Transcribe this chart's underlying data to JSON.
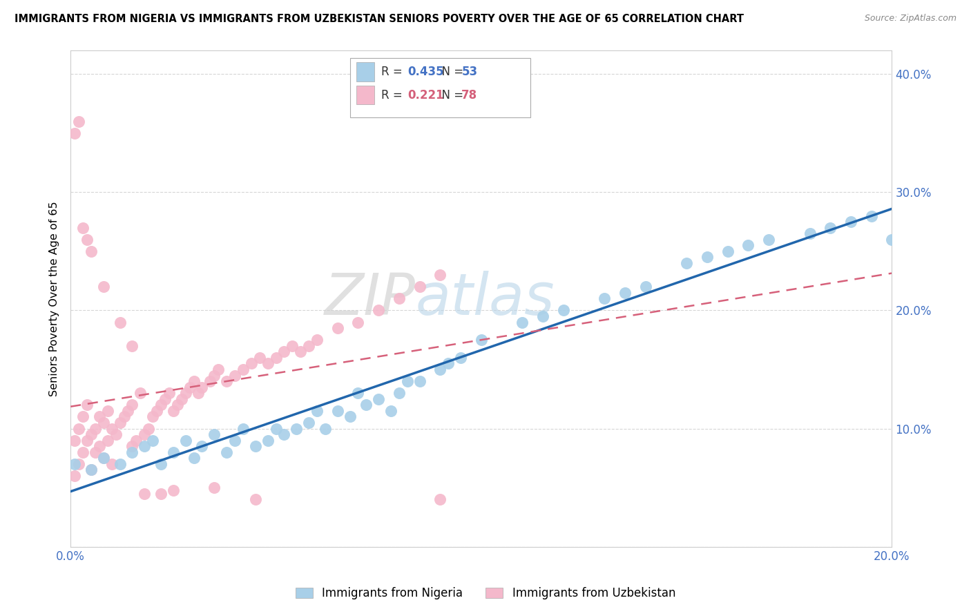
{
  "title": "IMMIGRANTS FROM NIGERIA VS IMMIGRANTS FROM UZBEKISTAN SENIORS POVERTY OVER THE AGE OF 65 CORRELATION CHART",
  "source": "Source: ZipAtlas.com",
  "ylabel": "Seniors Poverty Over the Age of 65",
  "xlim": [
    0.0,
    0.2
  ],
  "ylim": [
    0.0,
    0.42
  ],
  "nigeria_R": 0.435,
  "nigeria_N": 53,
  "uzbekistan_R": 0.221,
  "uzbekistan_N": 78,
  "nigeria_color": "#a8cfe8",
  "uzbekistan_color": "#f4b8cb",
  "nigeria_line_color": "#2166ac",
  "uzbekistan_line_color": "#d6607a",
  "watermark_zip": "ZIP",
  "watermark_atlas": "atlas",
  "nigeria_x": [
    0.001,
    0.005,
    0.008,
    0.012,
    0.015,
    0.018,
    0.02,
    0.022,
    0.025,
    0.028,
    0.03,
    0.032,
    0.035,
    0.038,
    0.04,
    0.042,
    0.045,
    0.048,
    0.05,
    0.052,
    0.055,
    0.058,
    0.06,
    0.062,
    0.065,
    0.068,
    0.07,
    0.072,
    0.075,
    0.078,
    0.08,
    0.082,
    0.085,
    0.09,
    0.092,
    0.095,
    0.1,
    0.11,
    0.115,
    0.12,
    0.13,
    0.135,
    0.14,
    0.15,
    0.155,
    0.16,
    0.165,
    0.17,
    0.18,
    0.185,
    0.19,
    0.195,
    0.2
  ],
  "nigeria_y": [
    0.07,
    0.065,
    0.075,
    0.07,
    0.08,
    0.085,
    0.09,
    0.07,
    0.08,
    0.09,
    0.075,
    0.085,
    0.095,
    0.08,
    0.09,
    0.1,
    0.085,
    0.09,
    0.1,
    0.095,
    0.1,
    0.105,
    0.115,
    0.1,
    0.115,
    0.11,
    0.13,
    0.12,
    0.125,
    0.115,
    0.13,
    0.14,
    0.14,
    0.15,
    0.155,
    0.16,
    0.175,
    0.19,
    0.195,
    0.2,
    0.21,
    0.215,
    0.22,
    0.24,
    0.245,
    0.25,
    0.255,
    0.26,
    0.265,
    0.27,
    0.275,
    0.28,
    0.26
  ],
  "uzbekistan_x": [
    0.001,
    0.001,
    0.002,
    0.002,
    0.003,
    0.003,
    0.004,
    0.004,
    0.005,
    0.005,
    0.006,
    0.006,
    0.007,
    0.007,
    0.008,
    0.008,
    0.009,
    0.009,
    0.01,
    0.01,
    0.011,
    0.012,
    0.013,
    0.014,
    0.015,
    0.015,
    0.016,
    0.017,
    0.018,
    0.019,
    0.02,
    0.021,
    0.022,
    0.023,
    0.024,
    0.025,
    0.026,
    0.027,
    0.028,
    0.029,
    0.03,
    0.031,
    0.032,
    0.034,
    0.035,
    0.036,
    0.038,
    0.04,
    0.042,
    0.044,
    0.046,
    0.048,
    0.05,
    0.052,
    0.054,
    0.056,
    0.058,
    0.06,
    0.065,
    0.07,
    0.075,
    0.08,
    0.085,
    0.09,
    0.001,
    0.002,
    0.003,
    0.004,
    0.005,
    0.008,
    0.012,
    0.015,
    0.018,
    0.022,
    0.025,
    0.035,
    0.045,
    0.09
  ],
  "uzbekistan_y": [
    0.06,
    0.09,
    0.07,
    0.1,
    0.08,
    0.11,
    0.09,
    0.12,
    0.065,
    0.095,
    0.08,
    0.1,
    0.085,
    0.11,
    0.075,
    0.105,
    0.09,
    0.115,
    0.07,
    0.1,
    0.095,
    0.105,
    0.11,
    0.115,
    0.12,
    0.085,
    0.09,
    0.13,
    0.095,
    0.1,
    0.11,
    0.115,
    0.12,
    0.125,
    0.13,
    0.115,
    0.12,
    0.125,
    0.13,
    0.135,
    0.14,
    0.13,
    0.135,
    0.14,
    0.145,
    0.15,
    0.14,
    0.145,
    0.15,
    0.155,
    0.16,
    0.155,
    0.16,
    0.165,
    0.17,
    0.165,
    0.17,
    0.175,
    0.185,
    0.19,
    0.2,
    0.21,
    0.22,
    0.23,
    0.35,
    0.36,
    0.27,
    0.26,
    0.25,
    0.22,
    0.19,
    0.17,
    0.045,
    0.045,
    0.048,
    0.05,
    0.04,
    0.04
  ]
}
